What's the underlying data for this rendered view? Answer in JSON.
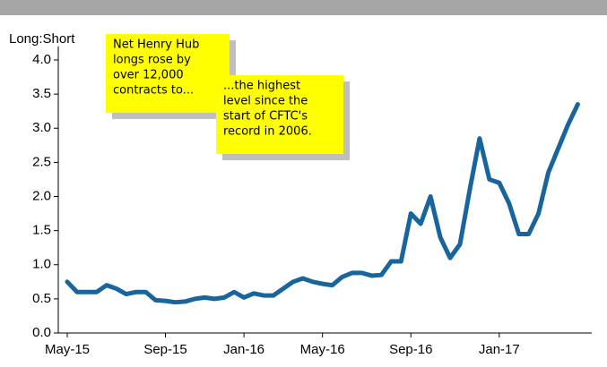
{
  "chart_data": {
    "type": "line",
    "ylabel": "Long:Short",
    "categories": [
      "May-15",
      null,
      null,
      null,
      null,
      null,
      null,
      null,
      null,
      null,
      "Sep-15",
      null,
      null,
      null,
      null,
      null,
      null,
      null,
      "Jan-16",
      null,
      null,
      null,
      null,
      null,
      null,
      null,
      "May-16",
      null,
      null,
      null,
      null,
      null,
      null,
      null,
      null,
      "Sep-16",
      null,
      null,
      null,
      null,
      null,
      null,
      null,
      null,
      "Jan-17",
      null,
      null,
      null,
      null,
      null,
      null,
      null,
      null
    ],
    "series": [
      {
        "name": "Long:Short",
        "color": "#17659c",
        "values": [
          0.75,
          0.6,
          0.6,
          0.6,
          0.7,
          0.65,
          0.57,
          0.6,
          0.6,
          0.48,
          0.47,
          0.45,
          0.46,
          0.5,
          0.52,
          0.5,
          0.52,
          0.6,
          0.52,
          0.58,
          0.55,
          0.55,
          0.65,
          0.75,
          0.8,
          0.75,
          0.72,
          0.7,
          0.82,
          0.88,
          0.88,
          0.84,
          0.85,
          1.05,
          1.05,
          1.75,
          1.6,
          2.0,
          1.4,
          1.1,
          1.3,
          2.1,
          2.85,
          2.25,
          2.2,
          1.9,
          1.45,
          1.45,
          1.75,
          2.35,
          2.7,
          3.05,
          3.35
        ]
      }
    ],
    "ylim": [
      0,
      4.2
    ],
    "yticks": [
      {
        "value": 0,
        "label": "0.0"
      },
      0.5,
      {
        "value": 1,
        "label": "1.0"
      },
      1.5,
      {
        "value": 2,
        "label": "2.0"
      },
      2.5,
      {
        "value": 3,
        "label": "3.0"
      },
      3.5,
      {
        "value": 4,
        "label": "4.0"
      }
    ],
    "annotations": [
      {
        "lines": [
          "Net Henry Hub",
          "longs rose by",
          "over 12,000",
          "contracts to..."
        ]
      },
      {
        "lines": [
          "...the highest",
          "level since the",
          "start of CFTC's",
          "record in 2006."
        ]
      }
    ]
  }
}
